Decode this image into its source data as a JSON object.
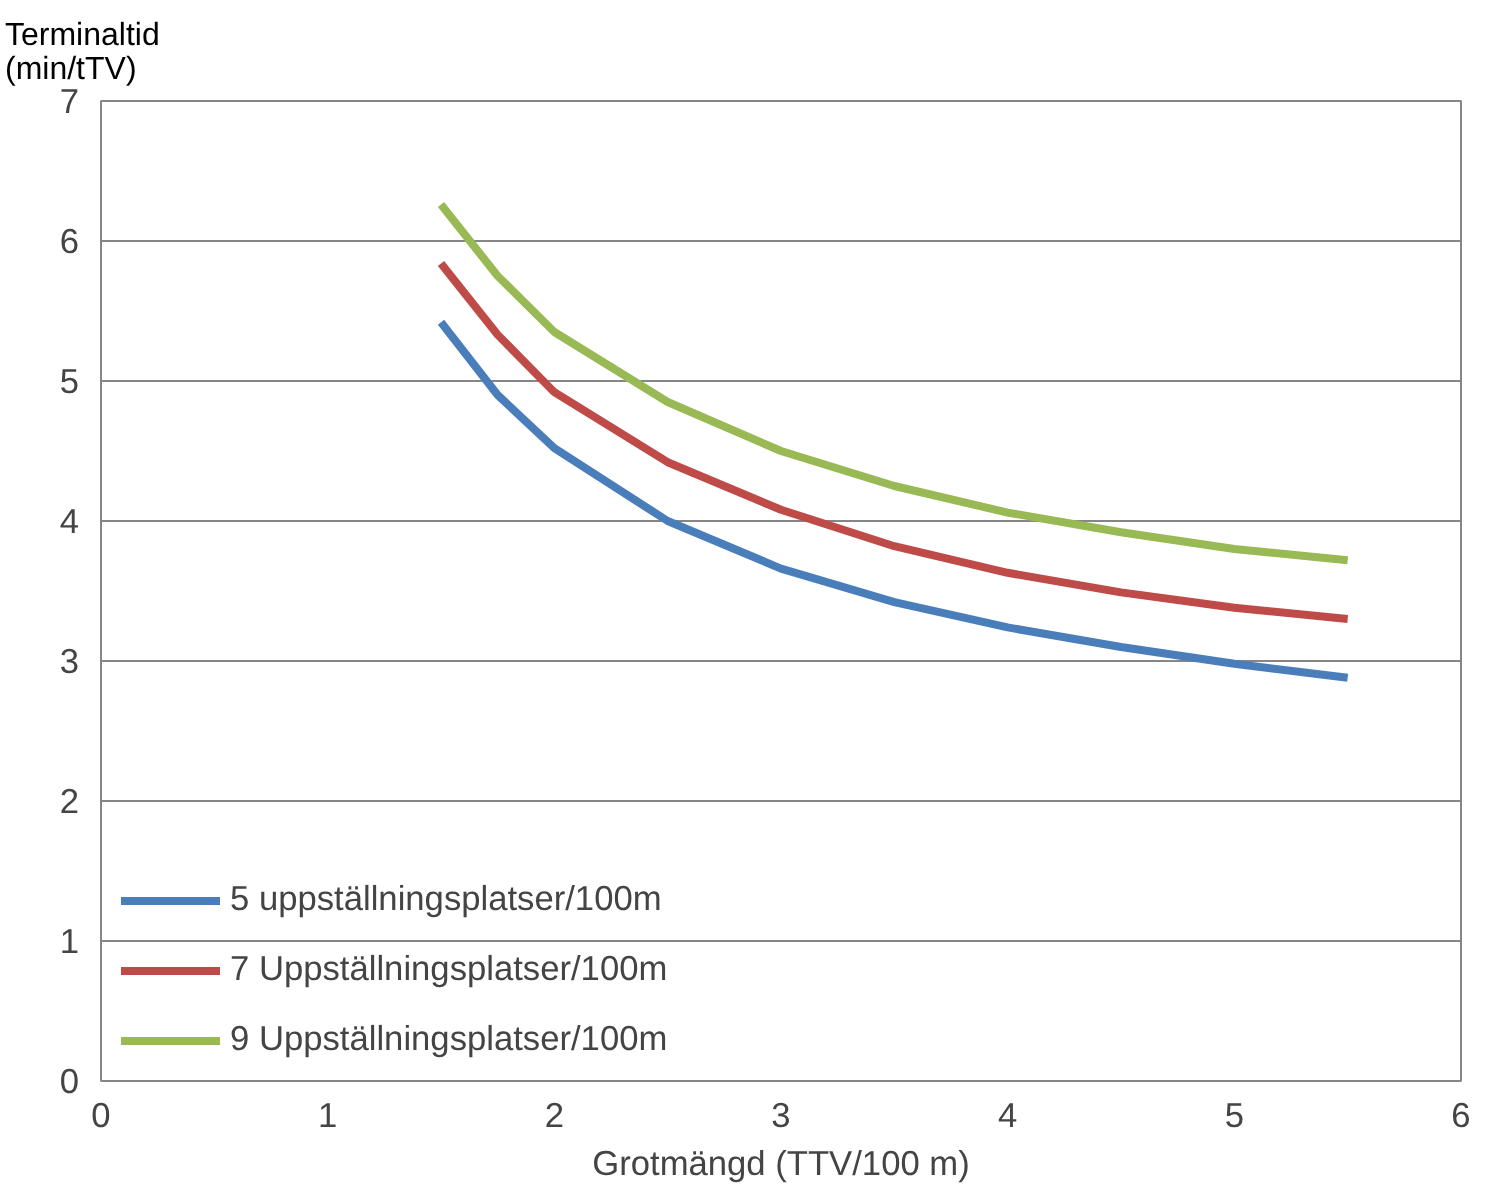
{
  "chart_data": {
    "type": "line",
    "ylabel": "Terminaltid\n(min/tTV)",
    "xlabel": "Grotmängd (TTV/100 m)",
    "x": [
      1.5,
      1.75,
      2,
      2.5,
      3,
      3.5,
      4,
      4.5,
      5,
      5.5
    ],
    "series": [
      {
        "name": "5 uppställningsplatser/100m",
        "color": "#4a7ebb",
        "values": [
          5.42,
          4.9,
          4.52,
          4.0,
          3.66,
          3.42,
          3.24,
          3.1,
          2.98,
          2.88
        ]
      },
      {
        "name": "7 Uppställningsplatser/100m",
        "color": "#be4b48",
        "values": [
          5.84,
          5.33,
          4.92,
          4.42,
          4.08,
          3.82,
          3.63,
          3.49,
          3.38,
          3.3
        ]
      },
      {
        "name": "9 Uppställningsplatser/100m",
        "color": "#98b954",
        "values": [
          6.26,
          5.75,
          5.35,
          4.85,
          4.5,
          4.25,
          4.06,
          3.92,
          3.8,
          3.72
        ]
      }
    ],
    "xlim": [
      0,
      6
    ],
    "xticks": [
      0,
      1,
      2,
      3,
      4,
      5,
      6
    ],
    "ylim": [
      0,
      7
    ],
    "yticks": [
      0,
      1,
      2,
      3,
      4,
      5,
      6,
      7
    ],
    "grid": "y",
    "legend": "bottom left",
    "line_style": "solid",
    "marker": "none"
  }
}
